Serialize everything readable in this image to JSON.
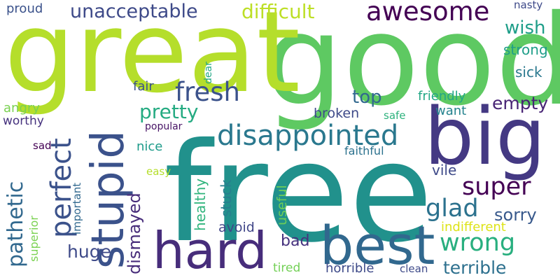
{
  "words": [
    {
      "text": "good",
      "color": "#5ec962",
      "orientation": "horizontal"
    },
    {
      "text": "great",
      "color": "#b5de2b",
      "orientation": "horizontal"
    },
    {
      "text": "free",
      "color": "#21918c",
      "orientation": "horizontal"
    },
    {
      "text": "big",
      "color": "#443983",
      "orientation": "horizontal"
    },
    {
      "text": "best",
      "color": "#31688e",
      "orientation": "horizontal"
    },
    {
      "text": "hard",
      "color": "#472d7b",
      "orientation": "horizontal"
    },
    {
      "text": "stupid",
      "color": "#3b528b",
      "orientation": "vertical"
    },
    {
      "text": "awesome",
      "color": "#440154",
      "orientation": "horizontal"
    },
    {
      "text": "disappointed",
      "color": "#2a788e",
      "orientation": "horizontal"
    },
    {
      "text": "perfect",
      "color": "#3b528b",
      "orientation": "vertical"
    },
    {
      "text": "fresh",
      "color": "#3b528b",
      "orientation": "horizontal"
    },
    {
      "text": "super",
      "color": "#440154",
      "orientation": "horizontal"
    },
    {
      "text": "glad",
      "color": "#2c728e",
      "orientation": "horizontal"
    },
    {
      "text": "wrong",
      "color": "#29af7f",
      "orientation": "horizontal"
    },
    {
      "text": "pathetic",
      "color": "#31688e",
      "orientation": "vertical"
    },
    {
      "text": "unacceptable",
      "color": "#3e4a89",
      "orientation": "horizontal"
    },
    {
      "text": "difficult",
      "color": "#bddf26",
      "orientation": "horizontal"
    },
    {
      "text": "pretty",
      "color": "#25ab82",
      "orientation": "horizontal"
    },
    {
      "text": "wish",
      "color": "#1f9e89",
      "orientation": "horizontal"
    },
    {
      "text": "empty",
      "color": "#482475",
      "orientation": "horizontal"
    },
    {
      "text": "top",
      "color": "#31688e",
      "orientation": "horizontal"
    },
    {
      "text": "sorry",
      "color": "#38598c",
      "orientation": "horizontal"
    },
    {
      "text": "terrible",
      "color": "#2d708e",
      "orientation": "horizontal"
    },
    {
      "text": "huge",
      "color": "#3e4a89",
      "orientation": "horizontal"
    },
    {
      "text": "dismayed",
      "color": "#472c7a",
      "orientation": "vertical"
    },
    {
      "text": "strong",
      "color": "#1f9e89",
      "orientation": "horizontal"
    },
    {
      "text": "sick",
      "color": "#2a788e",
      "orientation": "horizontal"
    },
    {
      "text": "bad",
      "color": "#46327e",
      "orientation": "horizontal"
    },
    {
      "text": "friendly",
      "color": "#22a785",
      "orientation": "horizontal"
    },
    {
      "text": "want",
      "color": "#25838e",
      "orientation": "horizontal"
    },
    {
      "text": "broken",
      "color": "#3e4a89",
      "orientation": "horizontal"
    },
    {
      "text": "vile",
      "color": "#3e4a89",
      "orientation": "horizontal"
    },
    {
      "text": "avoid",
      "color": "#404688",
      "orientation": "horizontal"
    },
    {
      "text": "stuck",
      "color": "#277f8e",
      "orientation": "vertical"
    },
    {
      "text": "useful",
      "color": "#6ece58",
      "orientation": "vertical"
    },
    {
      "text": "healthy",
      "color": "#2fb47c",
      "orientation": "vertical"
    },
    {
      "text": "proud",
      "color": "#3b528b",
      "orientation": "horizontal"
    },
    {
      "text": "nasty",
      "color": "#3e4a89",
      "orientation": "horizontal"
    },
    {
      "text": "fair",
      "color": "#3b528b",
      "orientation": "horizontal"
    },
    {
      "text": "angry",
      "color": "#7ad151",
      "orientation": "horizontal"
    },
    {
      "text": "worthy",
      "color": "#46327e",
      "orientation": "horizontal"
    },
    {
      "text": "sad",
      "color": "#440154",
      "orientation": "horizontal"
    },
    {
      "text": "nice",
      "color": "#1e9b8a",
      "orientation": "horizontal"
    },
    {
      "text": "safe",
      "color": "#2db27d",
      "orientation": "horizontal"
    },
    {
      "text": "popular",
      "color": "#471365",
      "orientation": "horizontal"
    },
    {
      "text": "faithful",
      "color": "#2c728e",
      "orientation": "horizontal"
    },
    {
      "text": "dear",
      "color": "#22a785",
      "orientation": "vertical"
    },
    {
      "text": "easy",
      "color": "#b5de2b",
      "orientation": "horizontal"
    },
    {
      "text": "important",
      "color": "#31688e",
      "orientation": "vertical"
    },
    {
      "text": "superior",
      "color": "#7ad151",
      "orientation": "vertical"
    },
    {
      "text": "indifferent",
      "color": "#dde318",
      "orientation": "horizontal"
    },
    {
      "text": "tired",
      "color": "#73d056",
      "orientation": "horizontal"
    },
    {
      "text": "horrible",
      "color": "#3e4a89",
      "orientation": "horizontal"
    },
    {
      "text": "clean",
      "color": "#3e4a89",
      "orientation": "horizontal"
    }
  ]
}
